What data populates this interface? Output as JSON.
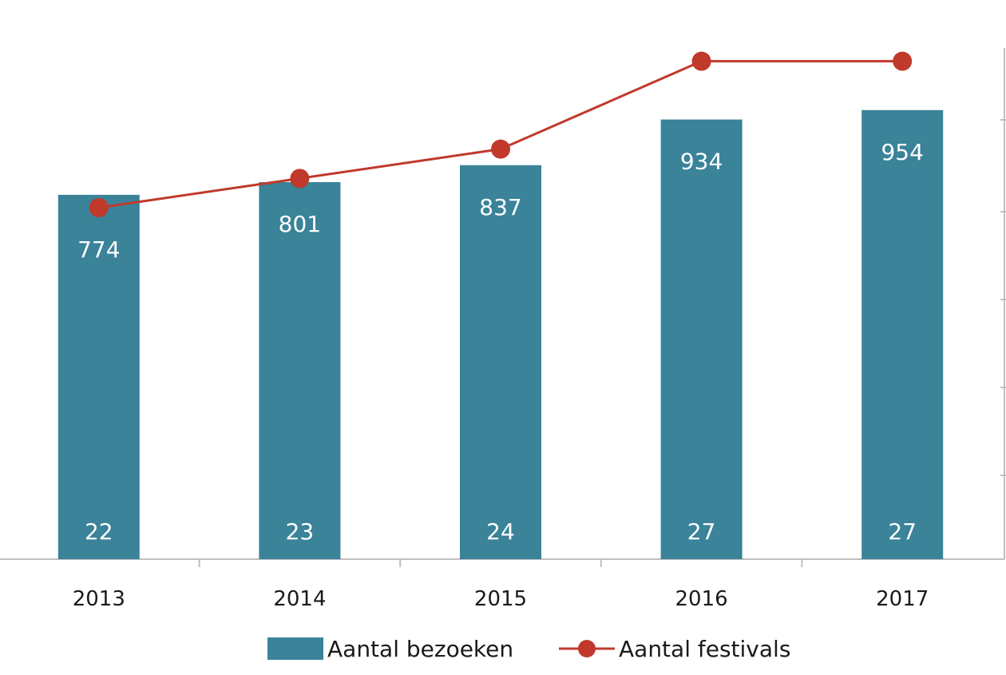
{
  "chart_data": {
    "type": "bar",
    "categories": [
      "2013",
      "2014",
      "2015",
      "2016",
      "2017"
    ],
    "series": [
      {
        "name": "Aantal bezoeken",
        "type": "bar",
        "axis": "right",
        "values": [
          774,
          801,
          837,
          934,
          954
        ],
        "color": "#3a8399"
      },
      {
        "name": "Aantal festivals",
        "type": "line",
        "axis": "left",
        "values": [
          22,
          23,
          24,
          27,
          27
        ],
        "color": "#c0392b"
      }
    ],
    "bar_axis_range": [
      0,
      1120
    ],
    "line_axis_range": [
      10,
      28
    ],
    "grid": false,
    "legend_position": "bottom",
    "title": "",
    "xlabel": "",
    "ylabel": ""
  }
}
